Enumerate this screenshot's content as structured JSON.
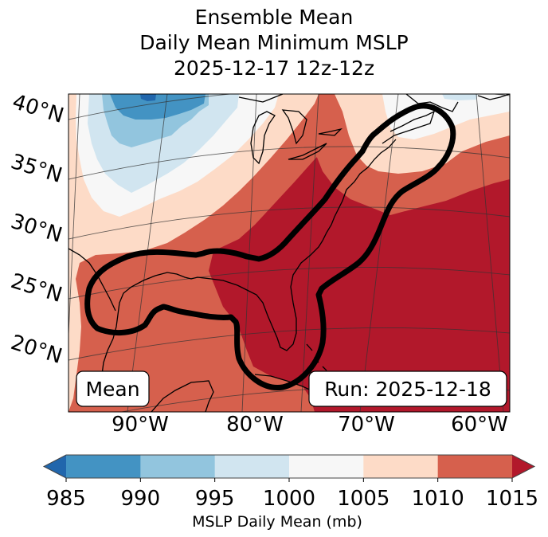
{
  "title": {
    "line1": "Ensemble Mean",
    "line2": "Daily Mean Minimum MSLP",
    "line3": "2025-12-17 12z-12z"
  },
  "map": {
    "lat_labels": [
      "40°N",
      "35°N",
      "30°N",
      "25°N",
      "20°N"
    ],
    "lon_labels": [
      "90°W",
      "80°W",
      "70°W",
      "60°W"
    ],
    "badge_left": "Mean",
    "badge_right": "Run: 2025-12-18",
    "contour_color": "#000000",
    "coastline_color": "#000000"
  },
  "colorbar": {
    "label": "MSLP Daily Mean (mb)",
    "ticks": [
      "985",
      "990",
      "995",
      "1000",
      "1005",
      "1010",
      "1015"
    ],
    "under_color": "#2166ac",
    "over_color": "#b2182b",
    "colors": [
      "#4393c3",
      "#92c5de",
      "#d1e5f0",
      "#f7f7f7",
      "#fddbc7",
      "#d6604d"
    ],
    "levels": [
      985,
      990,
      995,
      1000,
      1005,
      1010,
      1015
    ]
  }
}
